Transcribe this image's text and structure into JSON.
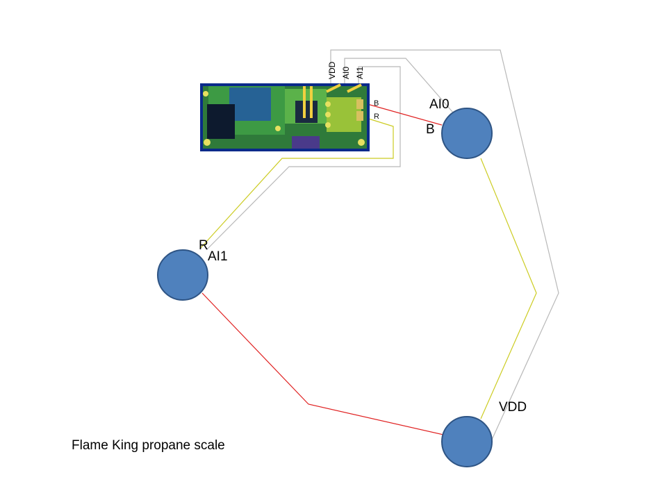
{
  "caption": "Flame King propane scale",
  "board": {
    "pins": {
      "vdd": "VDD",
      "ai0": "AI0",
      "ai1": "AI1"
    },
    "side_pins": {
      "b": "B",
      "r": "R"
    }
  },
  "nodes": {
    "top_right": {
      "labels": {
        "ai0": "AI0",
        "b": "B"
      }
    },
    "left": {
      "labels": {
        "r": "R",
        "ai1": "AI1"
      }
    },
    "bottom": {
      "labels": {
        "vdd": "VDD"
      }
    }
  },
  "colors": {
    "node_fill": "#4f81bd",
    "node_stroke": "#2e5484",
    "wire_red": "#e02020",
    "wire_yellow": "#cccc22",
    "wire_gray": "#b8b8b8"
  }
}
